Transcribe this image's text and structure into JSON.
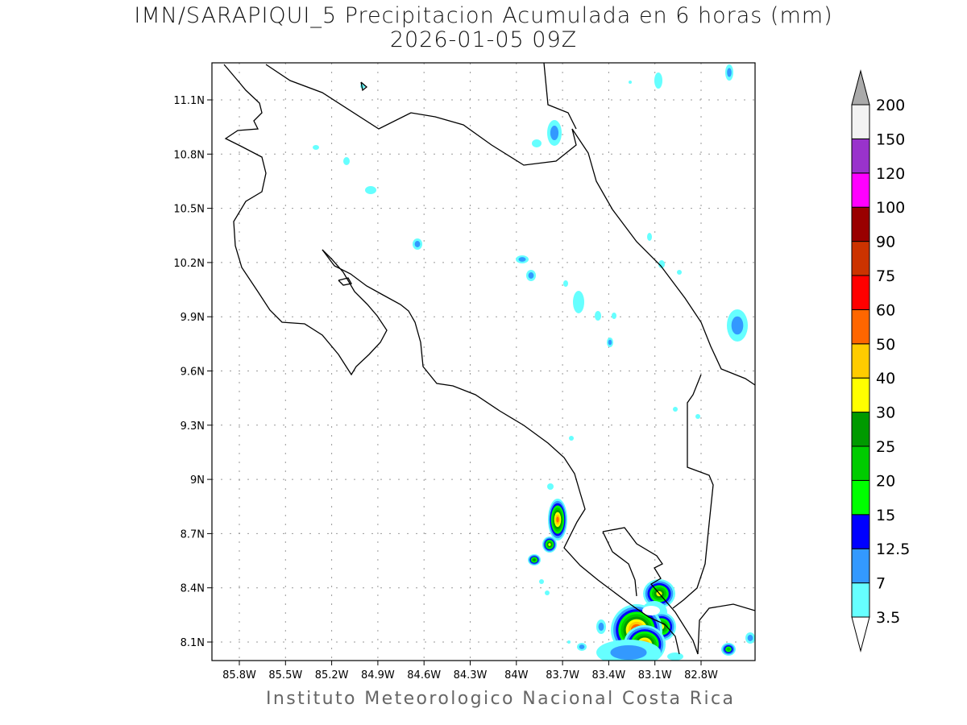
{
  "title": "IMN/SARAPIQUI_5 Precipitacion Acumulada en 6 horas (mm)",
  "subtitle": "2026-01-05 09Z",
  "footer": "Instituto Meteorologico Nacional Costa Rica",
  "map": {
    "region": "Costa Rica",
    "variable": "6-hour accumulated precipitation (mm)",
    "lon_ticks": [
      "85.8W",
      "85.5W",
      "85.2W",
      "84.9W",
      "84.6W",
      "84.3W",
      "84W",
      "83.7W",
      "83.4W",
      "83.1W",
      "82.8W"
    ],
    "lat_ticks": [
      "11.1N",
      "10.8N",
      "10.5N",
      "10.2N",
      "9.9N",
      "9.6N",
      "9.3N",
      "9N",
      "8.7N",
      "8.4N",
      "8.1N"
    ],
    "grid": "dotted"
  },
  "colorbar": {
    "labels": [
      "3.5",
      "7",
      "12.5",
      "15",
      "20",
      "25",
      "30",
      "40",
      "50",
      "60",
      "75",
      "90",
      "100",
      "120",
      "150",
      "200"
    ],
    "colors": [
      "#66ffff",
      "#3399ff",
      "#0000ff",
      "#00ff00",
      "#00cc00",
      "#009900",
      "#ffff00",
      "#ffcc00",
      "#ff6600",
      "#ff0000",
      "#cc3300",
      "#990000",
      "#ff00ff",
      "#9933cc",
      "#f3f3f3"
    ],
    "over_color": "#aaaaaa",
    "under_color": "#ffffff"
  }
}
